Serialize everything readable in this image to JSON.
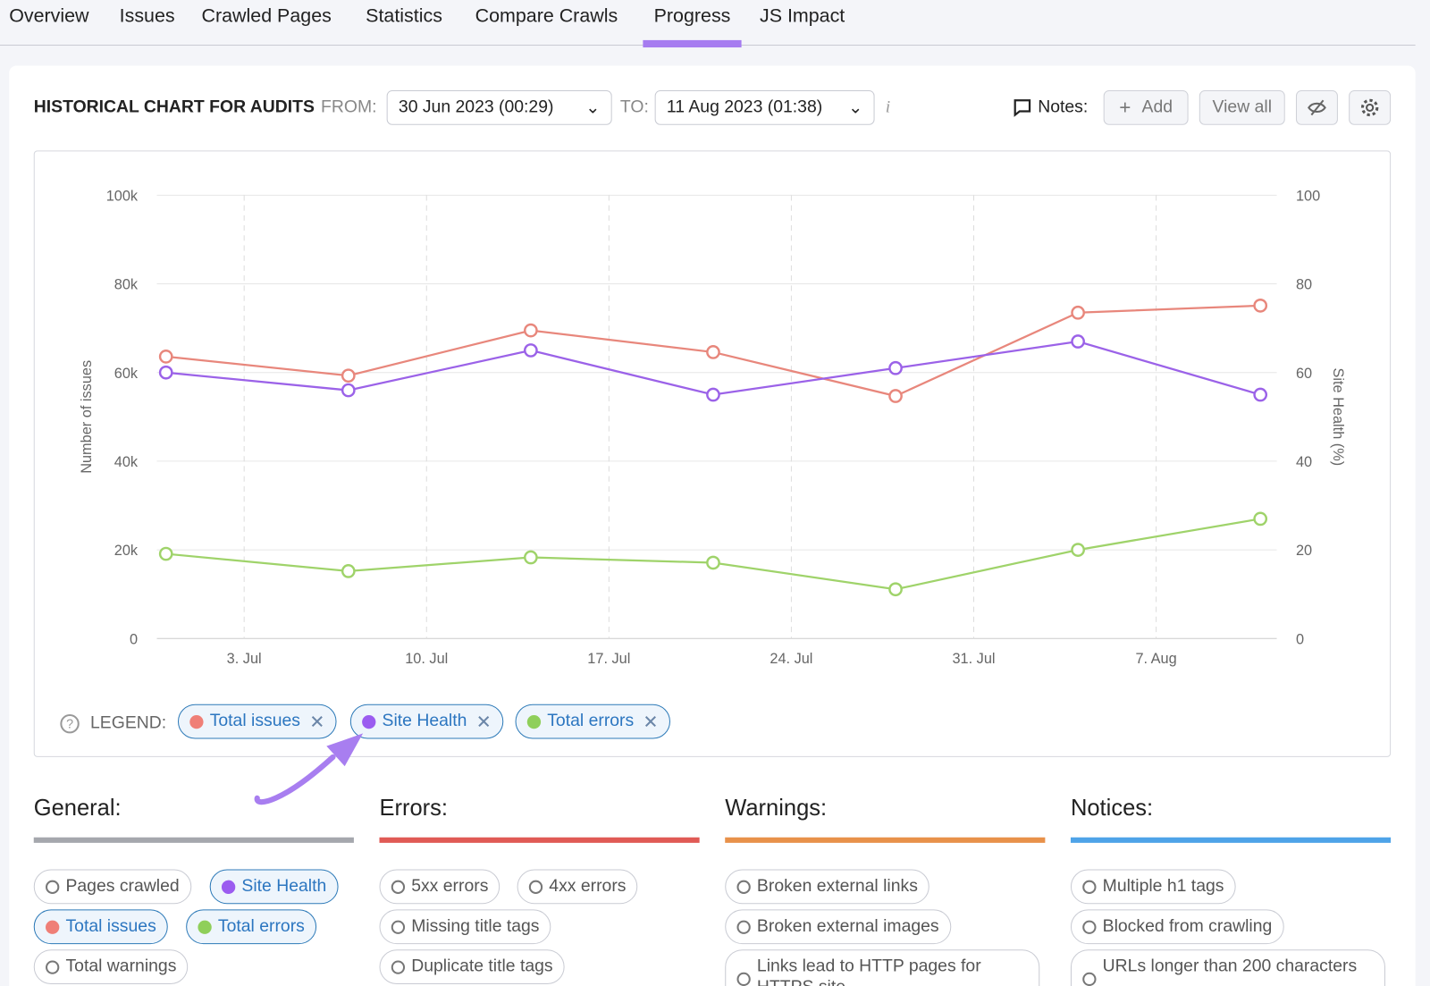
{
  "tabs": [
    {
      "label": "Overview"
    },
    {
      "label": "Issues"
    },
    {
      "label": "Crawled Pages"
    },
    {
      "label": "Statistics"
    },
    {
      "label": "Compare Crawls"
    },
    {
      "label": "Progress",
      "active": true
    },
    {
      "label": "JS Impact"
    }
  ],
  "header": {
    "title": "HISTORICAL CHART FOR AUDITS",
    "from_label": "FROM:",
    "from_value": "30 Jun 2023 (00:29)",
    "to_label": "TO:",
    "to_value": "11 Aug 2023 (01:38)",
    "info_icon": "info-icon",
    "notes_label": "Notes:",
    "add_label": "Add",
    "view_all_label": "View all",
    "hide_icon": "eye-off-icon",
    "settings_icon": "gear-icon"
  },
  "chart_data": {
    "type": "line",
    "x": [
      "2023-06-30",
      "2023-07-07",
      "2023-07-14",
      "2023-07-21",
      "2023-07-28",
      "2023-08-04",
      "2023-08-11"
    ],
    "x_ticks": [
      "3. Jul",
      "10. Jul",
      "17. Jul",
      "24. Jul",
      "31. Jul",
      "7. Aug"
    ],
    "ylabel": "Number of issues",
    "ylim": [
      0,
      100000
    ],
    "y_ticks": [
      "0",
      "20k",
      "40k",
      "60k",
      "80k",
      "100k"
    ],
    "y2label": "Site Health (%)",
    "y2lim": [
      0,
      100
    ],
    "y2_ticks": [
      "0",
      "20",
      "40",
      "60",
      "80",
      "100"
    ],
    "grid": true,
    "series": [
      {
        "name": "Total issues",
        "axis": "left",
        "color": "#e8877c",
        "values": [
          63600,
          59300,
          69500,
          64600,
          54700,
          73500,
          75100
        ]
      },
      {
        "name": "Site Health",
        "axis": "right",
        "color": "#9b62e8",
        "values": [
          60,
          56,
          65,
          55,
          61,
          67,
          55
        ]
      },
      {
        "name": "Total errors",
        "axis": "left",
        "color": "#9fd36a",
        "values": [
          19100,
          15200,
          18300,
          17100,
          11100,
          20000,
          27000
        ]
      }
    ]
  },
  "legend": {
    "label": "LEGEND:",
    "items": [
      {
        "label": "Total issues",
        "color": "#ef7f77"
      },
      {
        "label": "Site Health",
        "color": "#9b5cf0"
      },
      {
        "label": "Total errors",
        "color": "#8fcf5a"
      }
    ]
  },
  "groups": [
    {
      "title": "General:",
      "color": "#a5a7ad",
      "items": [
        {
          "label": "Pages crawled"
        },
        {
          "label": "Site Health",
          "on": true,
          "color": "#9b5cf0"
        },
        {
          "label": "Total issues",
          "on": true,
          "color": "#ef7f77"
        },
        {
          "label": "Total errors",
          "on": true,
          "color": "#8fcf5a"
        },
        {
          "label": "Total warnings"
        }
      ]
    },
    {
      "title": "Errors:",
      "color": "#e05a55",
      "items": [
        {
          "label": "5xx errors"
        },
        {
          "label": "4xx errors"
        },
        {
          "label": "Missing title tags"
        },
        {
          "label": "Duplicate title tags"
        }
      ]
    },
    {
      "title": "Warnings:",
      "color": "#e8914a",
      "items": [
        {
          "label": "Broken external links"
        },
        {
          "label": "Broken external images"
        },
        {
          "label": "Links lead to HTTP pages for HTTPS site"
        }
      ]
    },
    {
      "title": "Notices:",
      "color": "#4ea3e8",
      "items": [
        {
          "label": "Multiple h1 tags"
        },
        {
          "label": "Blocked from crawling"
        },
        {
          "label": "URLs longer than 200 characters"
        }
      ]
    }
  ]
}
